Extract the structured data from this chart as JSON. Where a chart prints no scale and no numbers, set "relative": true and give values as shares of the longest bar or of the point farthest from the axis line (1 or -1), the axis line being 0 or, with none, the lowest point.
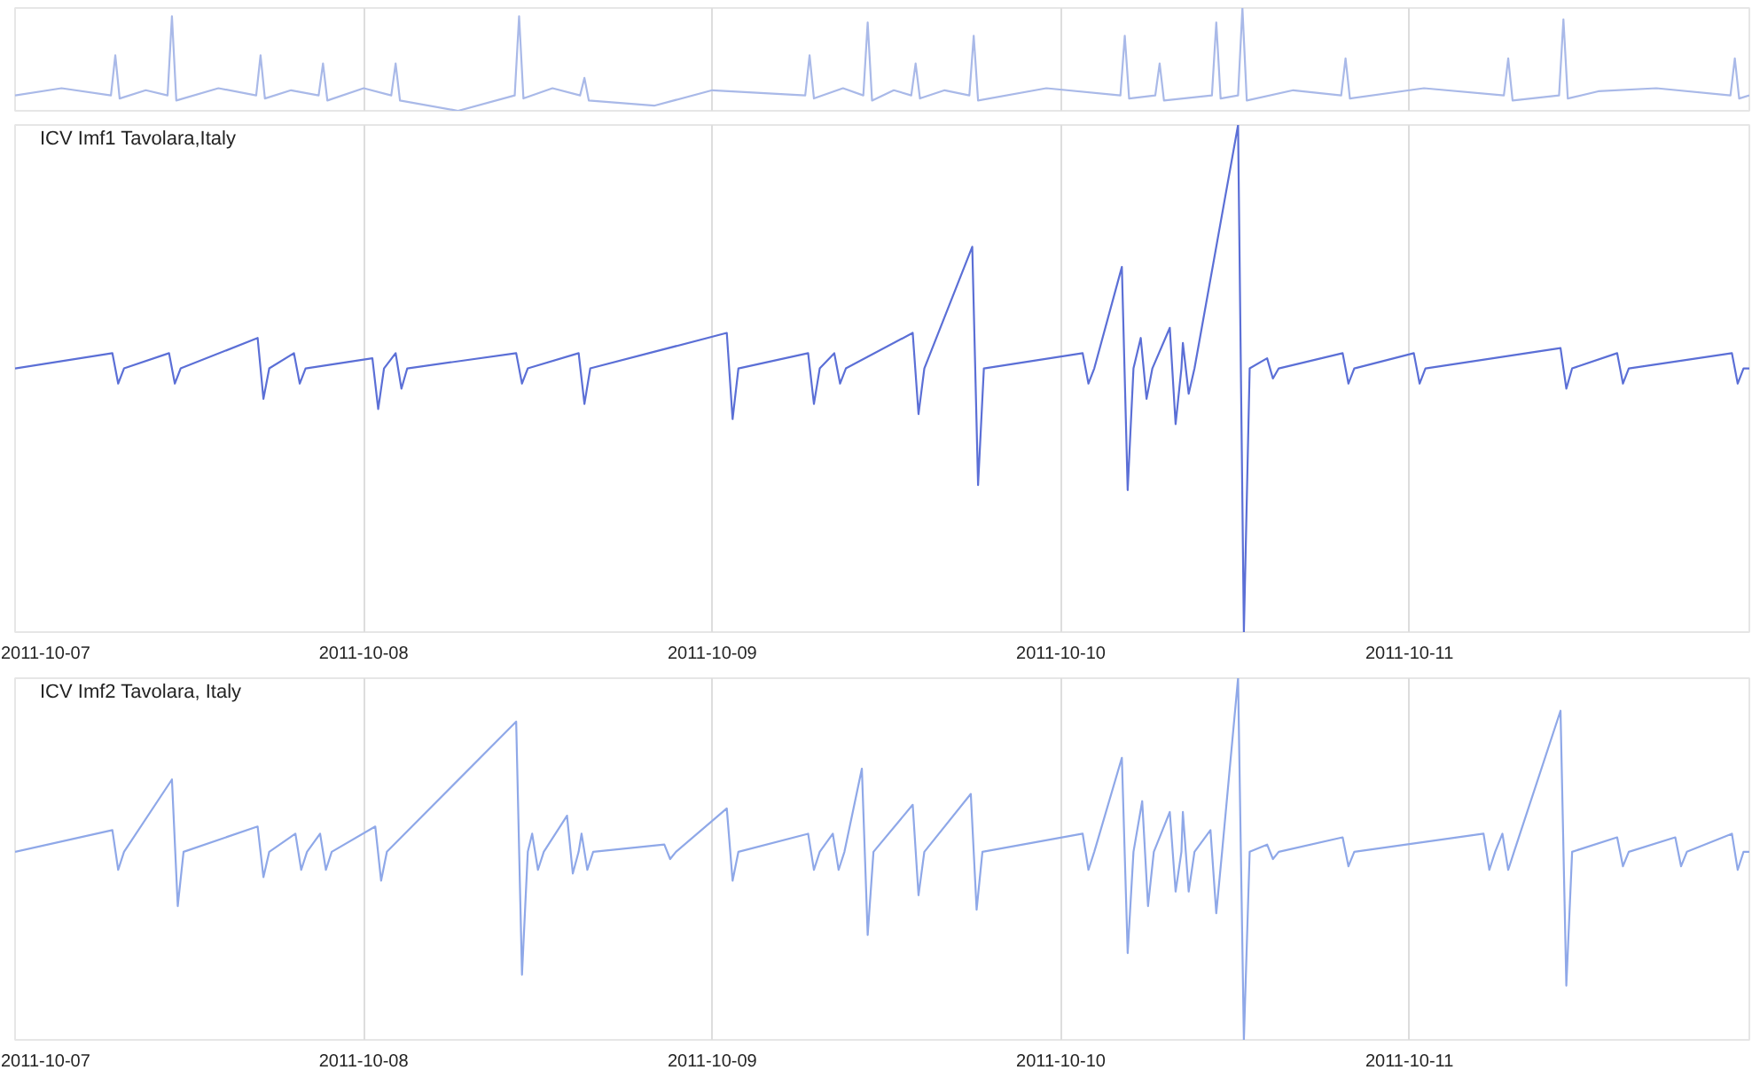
{
  "chart_data": [
    {
      "type": "line",
      "relative": true,
      "xlim": [
        "2011-10-07",
        "2011-10-11T23:24"
      ],
      "xticks": [
        "2011-10-07",
        "2011-10-08",
        "2011-10-09",
        "2011-10-10",
        "2011-10-11"
      ],
      "tick_labels": false,
      "grid": "x",
      "series": [
        {
          "color": "#a9b9e8",
          "x": [
            "2011-10-07T00:00",
            "2011-10-07T03:12",
            "2011-10-07T06:36",
            "2011-10-07T06:54",
            "2011-10-07T07:12",
            "2011-10-07T09:00",
            "2011-10-07T10:30",
            "2011-10-07T10:48",
            "2011-10-07T11:06",
            "2011-10-07T14:00",
            "2011-10-07T16:36",
            "2011-10-07T16:54",
            "2011-10-07T17:12",
            "2011-10-07T19:00",
            "2011-10-07T20:54",
            "2011-10-07T21:12",
            "2011-10-07T21:30",
            "2011-10-08T00:00",
            "2011-10-08T01:54",
            "2011-10-08T02:12",
            "2011-10-08T02:30",
            "2011-10-08T06:30",
            "2011-10-08T10:24",
            "2011-10-08T10:42",
            "2011-10-08T11:00",
            "2011-10-08T13:00",
            "2011-10-08T14:54",
            "2011-10-08T15:12",
            "2011-10-08T15:30",
            "2011-10-08T20:00",
            "2011-10-09T00:00",
            "2011-10-09T06:24",
            "2011-10-09T06:42",
            "2011-10-09T07:00",
            "2011-10-09T09:00",
            "2011-10-09T10:24",
            "2011-10-09T10:42",
            "2011-10-09T11:00",
            "2011-10-09T12:30",
            "2011-10-09T13:42",
            "2011-10-09T14:00",
            "2011-10-09T14:18",
            "2011-10-09T16:00",
            "2011-10-09T17:42",
            "2011-10-09T18:00",
            "2011-10-09T18:18",
            "2011-10-09T23:00",
            "2011-10-10T04:06",
            "2011-10-10T04:24",
            "2011-10-10T04:42",
            "2011-10-10T06:30",
            "2011-10-10T06:48",
            "2011-10-10T07:06",
            "2011-10-10T10:24",
            "2011-10-10T10:42",
            "2011-10-10T11:00",
            "2011-10-10T12:12",
            "2011-10-10T12:30",
            "2011-10-10T12:48",
            "2011-10-10T16:00",
            "2011-10-10T19:18",
            "2011-10-10T19:36",
            "2011-10-10T19:54",
            "2011-10-11T01:00",
            "2011-10-11T06:30",
            "2011-10-11T06:48",
            "2011-10-11T07:06",
            "2011-10-11T10:18",
            "2011-10-11T10:36",
            "2011-10-11T10:54",
            "2011-10-11T13:00",
            "2011-10-11T17:00",
            "2011-10-11T22:06",
            "2011-10-11T22:24",
            "2011-10-11T22:42",
            "2011-10-11T23:24"
          ],
          "values": [
            0.15,
            0.22,
            0.15,
            0.54,
            0.12,
            0.2,
            0.15,
            0.92,
            0.1,
            0.22,
            0.15,
            0.54,
            0.12,
            0.2,
            0.15,
            0.46,
            0.1,
            0.22,
            0.15,
            0.46,
            0.1,
            0.0,
            0.15,
            0.92,
            0.12,
            0.22,
            0.15,
            0.32,
            0.1,
            0.05,
            0.2,
            0.15,
            0.54,
            0.12,
            0.22,
            0.15,
            0.86,
            0.1,
            0.2,
            0.15,
            0.46,
            0.12,
            0.2,
            0.15,
            0.73,
            0.1,
            0.22,
            0.15,
            0.73,
            0.12,
            0.15,
            0.46,
            0.1,
            0.15,
            0.86,
            0.12,
            0.15,
            1.0,
            0.1,
            0.2,
            0.15,
            0.51,
            0.12,
            0.22,
            0.15,
            0.51,
            0.1,
            0.15,
            0.89,
            0.12,
            0.19,
            0.22,
            0.15,
            0.51,
            0.12,
            0.15
          ]
        }
      ]
    },
    {
      "type": "line",
      "relative": true,
      "title": "ICV Imf1 Tavolara,Italy",
      "xlim": [
        "2011-10-07",
        "2011-10-11T23:24"
      ],
      "xticks": [
        "2011-10-07",
        "2011-10-08",
        "2011-10-09",
        "2011-10-10",
        "2011-10-11"
      ],
      "tick_labels": "x",
      "grid": "x",
      "series": [
        {
          "color": "#5b6fd6",
          "x": [
            "2011-10-07T00:00",
            "2011-10-07T06:42",
            "2011-10-07T07:06",
            "2011-10-07T07:30",
            "2011-10-07T10:36",
            "2011-10-07T11:00",
            "2011-10-07T11:24",
            "2011-10-07T16:42",
            "2011-10-07T17:06",
            "2011-10-07T17:30",
            "2011-10-07T19:12",
            "2011-10-07T19:36",
            "2011-10-07T20:00",
            "2011-10-08T00:36",
            "2011-10-08T01:00",
            "2011-10-08T01:24",
            "2011-10-08T02:12",
            "2011-10-08T02:36",
            "2011-10-08T03:00",
            "2011-10-08T10:30",
            "2011-10-08T10:54",
            "2011-10-08T11:18",
            "2011-10-08T14:48",
            "2011-10-08T15:12",
            "2011-10-08T15:36",
            "2011-10-09T01:00",
            "2011-10-09T01:24",
            "2011-10-09T01:48",
            "2011-10-09T06:36",
            "2011-10-09T07:00",
            "2011-10-09T07:24",
            "2011-10-09T08:24",
            "2011-10-09T08:48",
            "2011-10-09T09:12",
            "2011-10-09T13:48",
            "2011-10-09T14:12",
            "2011-10-09T14:36",
            "2011-10-09T17:54",
            "2011-10-09T18:18",
            "2011-10-09T18:42",
            "2011-10-10T01:30",
            "2011-10-10T01:54",
            "2011-10-10T02:18",
            "2011-10-10T04:12",
            "2011-10-10T04:36",
            "2011-10-10T05:00",
            "2011-10-10T05:30",
            "2011-10-10T05:54",
            "2011-10-10T06:18",
            "2011-10-10T07:30",
            "2011-10-10T07:54",
            "2011-10-10T08:18",
            "2011-10-10T08:24",
            "2011-10-10T08:48",
            "2011-10-10T09:12",
            "2011-10-10T12:12",
            "2011-10-10T12:36",
            "2011-10-10T13:00",
            "2011-10-10T14:12",
            "2011-10-10T14:36",
            "2011-10-10T15:00",
            "2011-10-10T19:24",
            "2011-10-10T19:48",
            "2011-10-10T20:12",
            "2011-10-11T00:18",
            "2011-10-11T00:42",
            "2011-10-11T01:06",
            "2011-10-11T10:24",
            "2011-10-11T10:48",
            "2011-10-11T11:12",
            "2011-10-11T14:18",
            "2011-10-11T14:42",
            "2011-10-11T15:06",
            "2011-10-11T22:12",
            "2011-10-11T22:36",
            "2011-10-11T23:00",
            "2011-10-11T23:24"
          ],
          "values": [
            0.52,
            0.55,
            0.49,
            0.52,
            0.55,
            0.49,
            0.52,
            0.58,
            0.46,
            0.52,
            0.55,
            0.49,
            0.52,
            0.54,
            0.44,
            0.52,
            0.55,
            0.48,
            0.52,
            0.55,
            0.49,
            0.52,
            0.55,
            0.45,
            0.52,
            0.59,
            0.42,
            0.52,
            0.55,
            0.45,
            0.52,
            0.55,
            0.49,
            0.52,
            0.59,
            0.43,
            0.52,
            0.76,
            0.29,
            0.52,
            0.55,
            0.49,
            0.52,
            0.72,
            0.28,
            0.52,
            0.58,
            0.46,
            0.52,
            0.6,
            0.41,
            0.52,
            0.57,
            0.47,
            0.52,
            1.0,
            0.0,
            0.52,
            0.54,
            0.5,
            0.52,
            0.55,
            0.49,
            0.52,
            0.55,
            0.49,
            0.52,
            0.56,
            0.48,
            0.52,
            0.55,
            0.49,
            0.52,
            0.55,
            0.49,
            0.52,
            0.52
          ]
        }
      ]
    },
    {
      "type": "line",
      "relative": true,
      "title": "ICV Imf2 Tavolara, Italy",
      "xlim": [
        "2011-10-07",
        "2011-10-11T23:24"
      ],
      "xticks": [
        "2011-10-07",
        "2011-10-08",
        "2011-10-09",
        "2011-10-10",
        "2011-10-11"
      ],
      "tick_labels": "x",
      "grid": "x",
      "series": [
        {
          "color": "#8fa8e8",
          "x": [
            "2011-10-07T00:00",
            "2011-10-07T06:42",
            "2011-10-07T07:06",
            "2011-10-07T07:30",
            "2011-10-07T10:48",
            "2011-10-07T11:12",
            "2011-10-07T11:36",
            "2011-10-07T16:42",
            "2011-10-07T17:06",
            "2011-10-07T17:30",
            "2011-10-07T19:18",
            "2011-10-07T19:42",
            "2011-10-07T20:06",
            "2011-10-07T21:00",
            "2011-10-07T21:24",
            "2011-10-07T21:48",
            "2011-10-08T00:48",
            "2011-10-08T01:12",
            "2011-10-08T01:36",
            "2011-10-08T10:30",
            "2011-10-08T10:54",
            "2011-10-08T11:18",
            "2011-10-08T11:36",
            "2011-10-08T12:00",
            "2011-10-08T12:24",
            "2011-10-08T14:00",
            "2011-10-08T14:24",
            "2011-10-08T14:48",
            "2011-10-08T15:00",
            "2011-10-08T15:24",
            "2011-10-08T15:48",
            "2011-10-08T20:42",
            "2011-10-08T21:06",
            "2011-10-08T21:30",
            "2011-10-09T01:00",
            "2011-10-09T01:24",
            "2011-10-09T01:48",
            "2011-10-09T06:36",
            "2011-10-09T07:00",
            "2011-10-09T07:24",
            "2011-10-09T08:18",
            "2011-10-09T08:42",
            "2011-10-09T09:06",
            "2011-10-09T10:18",
            "2011-10-09T10:42",
            "2011-10-09T11:06",
            "2011-10-09T13:48",
            "2011-10-09T14:12",
            "2011-10-09T14:36",
            "2011-10-09T17:48",
            "2011-10-09T18:12",
            "2011-10-09T18:36",
            "2011-10-10T01:30",
            "2011-10-10T01:54",
            "2011-10-10T02:18",
            "2011-10-10T04:12",
            "2011-10-10T04:36",
            "2011-10-10T05:00",
            "2011-10-10T05:36",
            "2011-10-10T06:00",
            "2011-10-10T06:24",
            "2011-10-10T07:30",
            "2011-10-10T07:54",
            "2011-10-10T08:18",
            "2011-10-10T08:24",
            "2011-10-10T08:48",
            "2011-10-10T09:12",
            "2011-10-10T10:18",
            "2011-10-10T10:42",
            "2011-10-10T11:06",
            "2011-10-10T12:12",
            "2011-10-10T12:36",
            "2011-10-10T13:00",
            "2011-10-10T14:12",
            "2011-10-10T14:36",
            "2011-10-10T15:00",
            "2011-10-10T19:24",
            "2011-10-10T19:48",
            "2011-10-10T20:12",
            "2011-10-11T05:06",
            "2011-10-11T05:30",
            "2011-10-11T05:54",
            "2011-10-11T06:24",
            "2011-10-11T06:48",
            "2011-10-11T07:12",
            "2011-10-11T10:24",
            "2011-10-11T10:48",
            "2011-10-11T11:12",
            "2011-10-11T14:18",
            "2011-10-11T14:42",
            "2011-10-11T15:06",
            "2011-10-11T18:18",
            "2011-10-11T18:42",
            "2011-10-11T19:06",
            "2011-10-11T22:12",
            "2011-10-11T22:36",
            "2011-10-11T23:00",
            "2011-10-11T23:24"
          ],
          "values": [
            0.52,
            0.58,
            0.47,
            0.52,
            0.72,
            0.37,
            0.52,
            0.59,
            0.45,
            0.52,
            0.57,
            0.47,
            0.52,
            0.57,
            0.47,
            0.52,
            0.59,
            0.44,
            0.52,
            0.88,
            0.18,
            0.52,
            0.57,
            0.47,
            0.52,
            0.62,
            0.46,
            0.52,
            0.57,
            0.47,
            0.52,
            0.54,
            0.5,
            0.52,
            0.64,
            0.44,
            0.52,
            0.57,
            0.47,
            0.52,
            0.57,
            0.47,
            0.52,
            0.75,
            0.29,
            0.52,
            0.65,
            0.4,
            0.52,
            0.68,
            0.36,
            0.52,
            0.57,
            0.47,
            0.52,
            0.78,
            0.24,
            0.52,
            0.66,
            0.37,
            0.52,
            0.63,
            0.41,
            0.52,
            0.63,
            0.41,
            0.52,
            0.58,
            0.35,
            0.52,
            1.0,
            0.0,
            0.52,
            0.54,
            0.5,
            0.52,
            0.56,
            0.48,
            0.52,
            0.57,
            0.47,
            0.52,
            0.57,
            0.47,
            0.52,
            0.91,
            0.15,
            0.52,
            0.56,
            0.48,
            0.52,
            0.56,
            0.48,
            0.52,
            0.57,
            0.47,
            0.52,
            0.52
          ]
        }
      ]
    }
  ]
}
